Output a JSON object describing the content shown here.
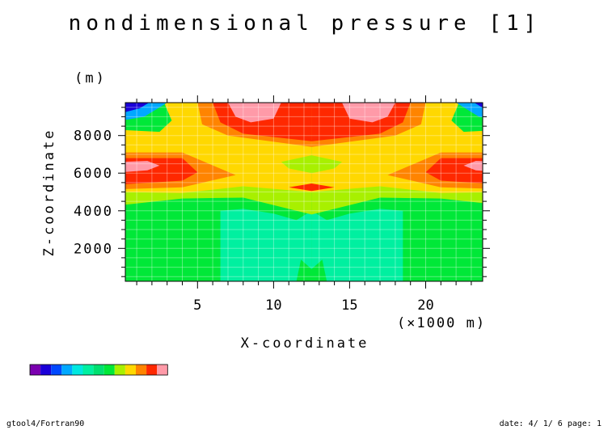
{
  "chart_data": {
    "type": "heatmap",
    "title": "nondimensional pressure [1]",
    "xlabel": "X-coordinate",
    "x_unit": "(×1000 m)",
    "ylabel": "Z-coordinate",
    "y_unit": "(m)",
    "xlim": [
      0.25,
      23.75
    ],
    "ylim": [
      250,
      9750
    ],
    "x_major_ticks": [
      5,
      10,
      15,
      20
    ],
    "x_tick_labels": [
      "5",
      "10",
      "15",
      "20"
    ],
    "y_major_ticks": [
      2000,
      4000,
      6000,
      8000
    ],
    "y_tick_labels": [
      "2000",
      "4000",
      "6000",
      "8000"
    ],
    "grid": true,
    "colorbar": [
      "#7b00b0",
      "#1a00d8",
      "#0048ff",
      "#00a8ff",
      "#00e8e0",
      "#00f0a0",
      "#00e070",
      "#00e838",
      "#a8f000",
      "#ffd800",
      "#ff8400",
      "#ff2800",
      "#ff9aa8"
    ],
    "fields": [
      {
        "level": 0,
        "color": "#00e838",
        "shape": "background"
      },
      {
        "level": 1,
        "color": "#00f0a0",
        "shape": "bottom basins, x≈6.5–11.5 and 13.5–18.5, z 250–4100 m, meeting near x=12.5 at z≈1000 m"
      },
      {
        "level": 2,
        "color": "#a8f000",
        "shape": "band z≈4400–5200 m; central lens near x=12.5, z≈6500 m"
      },
      {
        "level": 3,
        "color": "#ffd800",
        "shape": "upper region z≈4900–9750 m, x≈3–22"
      },
      {
        "level": 4,
        "color": "#ff8400",
        "shape": "side lobes near z≈6000 m and upper cap"
      },
      {
        "level": 5,
        "color": "#ff2800",
        "shape": "side cores near x<5 and x>19 at z≈6200 m; top cap x≈6–19, z≥7700 m; thin lens near x=12.5, z≈5200 m"
      },
      {
        "level": 6,
        "color": "#ff9aa8",
        "shape": "maxima near x≈8.5 and 16.5 at top; edge spots near z≈6300 m"
      },
      {
        "level": -1,
        "color": "#00a8ff",
        "shape": "top corners"
      },
      {
        "level": -2,
        "color": "#1a00d8",
        "shape": "top corners"
      }
    ]
  },
  "footer": {
    "left": "gtool4/Fortran90",
    "right": "date: 4/ 1/ 6 page: 1"
  }
}
